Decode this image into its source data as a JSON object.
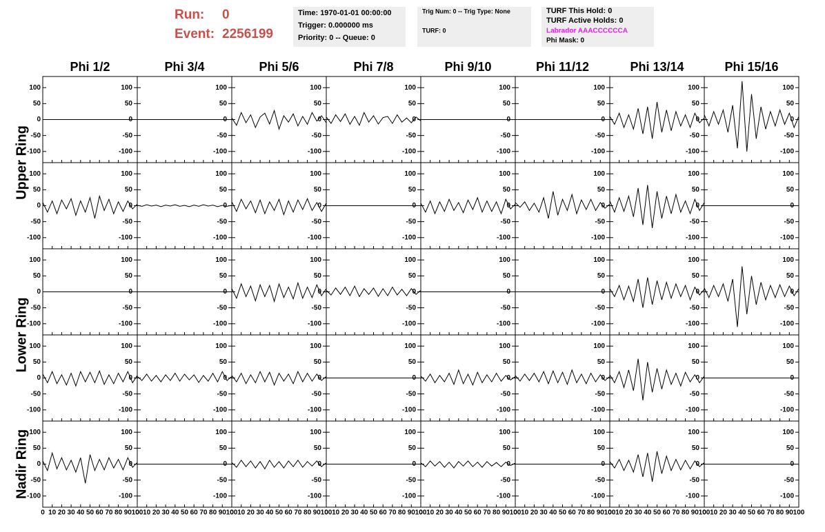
{
  "chart_data": {
    "type": "line",
    "header": {
      "run_label": "Run:",
      "run": "0",
      "event_label": "Event:",
      "event": "2256199",
      "box1": [
        "Time: 1970-01-01 00:00:00",
        "Trigger: 0.000000 ms",
        "Priority: 0 -- Queue: 0"
      ],
      "box2": [
        "Trig Num: 0 -- Trig Type: None",
        "TURF: 0"
      ],
      "box3": [
        "TURF This Hold: 0",
        "TURF Active Holds: 0",
        "Labrador AAACCCCCCA",
        "Phi Mask: 0"
      ]
    },
    "columns": [
      "Phi 1/2",
      "Phi 3/4",
      "Phi 5/6",
      "Phi 7/8",
      "Phi 9/10",
      "Phi 11/12",
      "Phi 13/14",
      "Phi 15/16"
    ],
    "ring_labels": [
      "Upper Ring",
      "Lower Ring",
      "Nadir Ring"
    ],
    "color": "#000000",
    "xlim": [
      0,
      100
    ],
    "xticks": [
      0,
      10,
      20,
      30,
      40,
      50,
      60,
      70,
      80,
      90,
      100
    ],
    "ylim": [
      -135,
      135
    ],
    "yticks": [
      -100,
      -50,
      0,
      50,
      100
    ],
    "x": [
      0,
      5,
      10,
      15,
      20,
      25,
      30,
      35,
      40,
      45,
      50,
      55,
      60,
      65,
      70,
      75,
      80,
      85,
      90,
      95,
      100
    ],
    "panels": [
      [
        [
          0,
          0,
          0,
          0,
          0,
          0,
          0,
          0,
          0,
          0,
          0,
          0,
          0,
          0,
          0,
          0,
          0,
          0,
          0,
          0,
          0
        ],
        [
          0,
          0,
          0,
          0,
          0,
          0,
          0,
          0,
          0,
          0,
          0,
          0,
          0,
          0,
          0,
          0,
          0,
          0,
          0,
          0,
          0
        ],
        [
          5,
          -18,
          22,
          -10,
          15,
          -25,
          8,
          20,
          -14,
          28,
          -30,
          12,
          -8,
          18,
          -20,
          10,
          -15,
          22,
          -5,
          12,
          -10
        ],
        [
          8,
          -12,
          15,
          -6,
          18,
          -15,
          10,
          -18,
          22,
          -8,
          12,
          -14,
          6,
          10,
          -12,
          15,
          -8,
          5,
          -10,
          8,
          -4
        ],
        [
          0,
          0,
          0,
          0,
          0,
          0,
          0,
          0,
          0,
          0,
          0,
          0,
          0,
          0,
          0,
          0,
          0,
          0,
          0,
          0,
          0
        ],
        [
          0,
          0,
          0,
          0,
          0,
          0,
          0,
          0,
          0,
          0,
          0,
          0,
          0,
          0,
          0,
          0,
          0,
          0,
          0,
          0,
          0
        ],
        [
          10,
          -15,
          20,
          -25,
          15,
          -30,
          35,
          -45,
          40,
          -60,
          55,
          -40,
          30,
          -35,
          25,
          -20,
          15,
          -25,
          20,
          -10,
          5
        ],
        [
          15,
          -20,
          25,
          -15,
          30,
          -40,
          45,
          -90,
          120,
          -100,
          80,
          -60,
          40,
          -30,
          25,
          -20,
          30,
          -15,
          20,
          -25,
          10
        ]
      ],
      [
        [
          10,
          -20,
          15,
          -25,
          18,
          -10,
          22,
          -30,
          15,
          -20,
          25,
          -40,
          30,
          -15,
          20,
          -25,
          12,
          -18,
          15,
          -10,
          5
        ],
        [
          1,
          -2,
          3,
          -1,
          2,
          -3,
          2,
          -1,
          3,
          -2,
          1,
          -3,
          2,
          -2,
          3,
          -1,
          2,
          -3,
          1,
          -2,
          1
        ],
        [
          12,
          -18,
          20,
          -10,
          15,
          -22,
          18,
          -25,
          12,
          -15,
          20,
          -28,
          15,
          -20,
          18,
          -12,
          22,
          -15,
          10,
          -18,
          8
        ],
        [
          0,
          0,
          0,
          0,
          0,
          0,
          0,
          0,
          0,
          0,
          0,
          0,
          0,
          0,
          0,
          0,
          0,
          0,
          0,
          0,
          0
        ],
        [
          8,
          -20,
          15,
          -25,
          12,
          -18,
          20,
          -15,
          10,
          -22,
          18,
          -12,
          25,
          -20,
          15,
          -18,
          12,
          -25,
          20,
          -10,
          5
        ],
        [
          10,
          -5,
          12,
          -15,
          8,
          -20,
          25,
          -40,
          45,
          -30,
          20,
          -15,
          35,
          -25,
          18,
          -12,
          20,
          -15,
          10,
          -8,
          5
        ],
        [
          15,
          -20,
          25,
          -18,
          30,
          -35,
          55,
          -60,
          65,
          -70,
          45,
          -40,
          30,
          -25,
          35,
          -20,
          15,
          -25,
          20,
          -15,
          10
        ],
        [
          0,
          0,
          0,
          0,
          0,
          0,
          0,
          0,
          0,
          0,
          0,
          0,
          0,
          0,
          0,
          0,
          0,
          0,
          0,
          0,
          0
        ]
      ],
      [
        [
          0,
          0,
          0,
          0,
          0,
          0,
          0,
          0,
          0,
          0,
          0,
          0,
          0,
          0,
          0,
          0,
          0,
          0,
          0,
          0,
          0
        ],
        [
          0,
          0,
          0,
          0,
          0,
          0,
          0,
          0,
          0,
          0,
          0,
          0,
          0,
          0,
          0,
          0,
          0,
          0,
          0,
          0,
          0
        ],
        [
          10,
          -20,
          25,
          -15,
          18,
          -28,
          22,
          -15,
          20,
          -30,
          25,
          -18,
          15,
          -22,
          28,
          -20,
          15,
          -18,
          22,
          -12,
          10
        ],
        [
          5,
          -10,
          12,
          -8,
          15,
          -12,
          18,
          -15,
          10,
          -8,
          12,
          -14,
          10,
          -12,
          15,
          -10,
          8,
          -12,
          10,
          -8,
          5
        ],
        [
          0,
          0,
          0,
          0,
          0,
          0,
          0,
          0,
          0,
          0,
          0,
          0,
          0,
          0,
          0,
          0,
          0,
          0,
          0,
          0,
          0
        ],
        [
          0,
          0,
          0,
          0,
          0,
          0,
          0,
          0,
          0,
          0,
          0,
          0,
          0,
          0,
          0,
          0,
          0,
          0,
          0,
          0,
          0
        ],
        [
          10,
          -15,
          20,
          -25,
          18,
          -30,
          40,
          -50,
          45,
          -40,
          35,
          -25,
          30,
          -20,
          25,
          -15,
          20,
          -25,
          15,
          -10,
          8
        ],
        [
          12,
          -18,
          20,
          -15,
          25,
          -30,
          40,
          -110,
          80,
          -70,
          50,
          -40,
          30,
          -25,
          20,
          -18,
          22,
          -15,
          18,
          -12,
          10
        ]
      ],
      [
        [
          12,
          -15,
          20,
          -18,
          10,
          -22,
          15,
          -25,
          20,
          -12,
          18,
          -15,
          22,
          -20,
          10,
          -18,
          15,
          -12,
          20,
          -15,
          8
        ],
        [
          5,
          -8,
          12,
          -10,
          8,
          -12,
          10,
          -8,
          15,
          -10,
          12,
          -6,
          10,
          -14,
          8,
          -10,
          15,
          -12,
          20,
          -8,
          5
        ],
        [
          8,
          -12,
          15,
          -18,
          10,
          -15,
          20,
          -12,
          18,
          -22,
          15,
          -10,
          12,
          -18,
          20,
          -12,
          15,
          -10,
          12,
          -8,
          5
        ],
        [
          0,
          0,
          0,
          0,
          0,
          0,
          0,
          0,
          0,
          0,
          0,
          0,
          0,
          0,
          0,
          0,
          0,
          0,
          0,
          0,
          0
        ],
        [
          6,
          -10,
          12,
          -15,
          8,
          -12,
          15,
          -20,
          25,
          -18,
          12,
          -22,
          18,
          -15,
          10,
          -12,
          15,
          -10,
          8,
          -6,
          4
        ],
        [
          8,
          -10,
          12,
          -8,
          15,
          -12,
          20,
          -18,
          22,
          -15,
          18,
          -20,
          25,
          -15,
          12,
          -18,
          15,
          -12,
          10,
          -8,
          5
        ],
        [
          10,
          -15,
          20,
          -30,
          25,
          -40,
          60,
          -70,
          50,
          -45,
          30,
          -35,
          25,
          -20,
          15,
          -25,
          18,
          -12,
          10,
          -15,
          6
        ],
        [
          0,
          0,
          0,
          0,
          0,
          0,
          0,
          0,
          0,
          0,
          0,
          0,
          0,
          0,
          0,
          0,
          0,
          0,
          0,
          0,
          0
        ]
      ],
      [
        [
          10,
          -20,
          35,
          -15,
          20,
          -18,
          12,
          -25,
          20,
          -60,
          30,
          -20,
          15,
          -18,
          20,
          -12,
          15,
          -18,
          20,
          -10,
          5
        ],
        [
          0,
          0,
          0,
          0,
          0,
          0,
          0,
          0,
          0,
          0,
          0,
          0,
          0,
          0,
          0,
          0,
          0,
          0,
          0,
          0,
          0
        ],
        [
          5,
          -10,
          12,
          -8,
          10,
          -12,
          8,
          -15,
          12,
          -10,
          8,
          -12,
          10,
          -8,
          12,
          -10,
          8,
          -6,
          10,
          -8,
          4
        ],
        [
          0,
          0,
          0,
          0,
          0,
          0,
          0,
          0,
          0,
          0,
          0,
          0,
          0,
          0,
          0,
          0,
          0,
          0,
          0,
          0,
          0
        ],
        [
          4,
          -8,
          10,
          -6,
          8,
          -10,
          6,
          -12,
          8,
          -6,
          10,
          -8,
          6,
          -10,
          8,
          -6,
          5,
          -8,
          6,
          -4,
          3
        ],
        [
          0,
          0,
          0,
          0,
          0,
          0,
          0,
          0,
          0,
          0,
          0,
          0,
          0,
          0,
          0,
          0,
          0,
          0,
          0,
          0,
          0
        ],
        [
          8,
          -12,
          15,
          -20,
          12,
          -25,
          30,
          -40,
          35,
          -55,
          40,
          -30,
          25,
          -20,
          15,
          -18,
          12,
          -15,
          10,
          -8,
          5
        ],
        [
          0,
          0,
          0,
          0,
          0,
          0,
          0,
          0,
          0,
          0,
          0,
          0,
          0,
          0,
          0,
          0,
          0,
          0,
          0,
          0,
          0
        ]
      ]
    ]
  }
}
